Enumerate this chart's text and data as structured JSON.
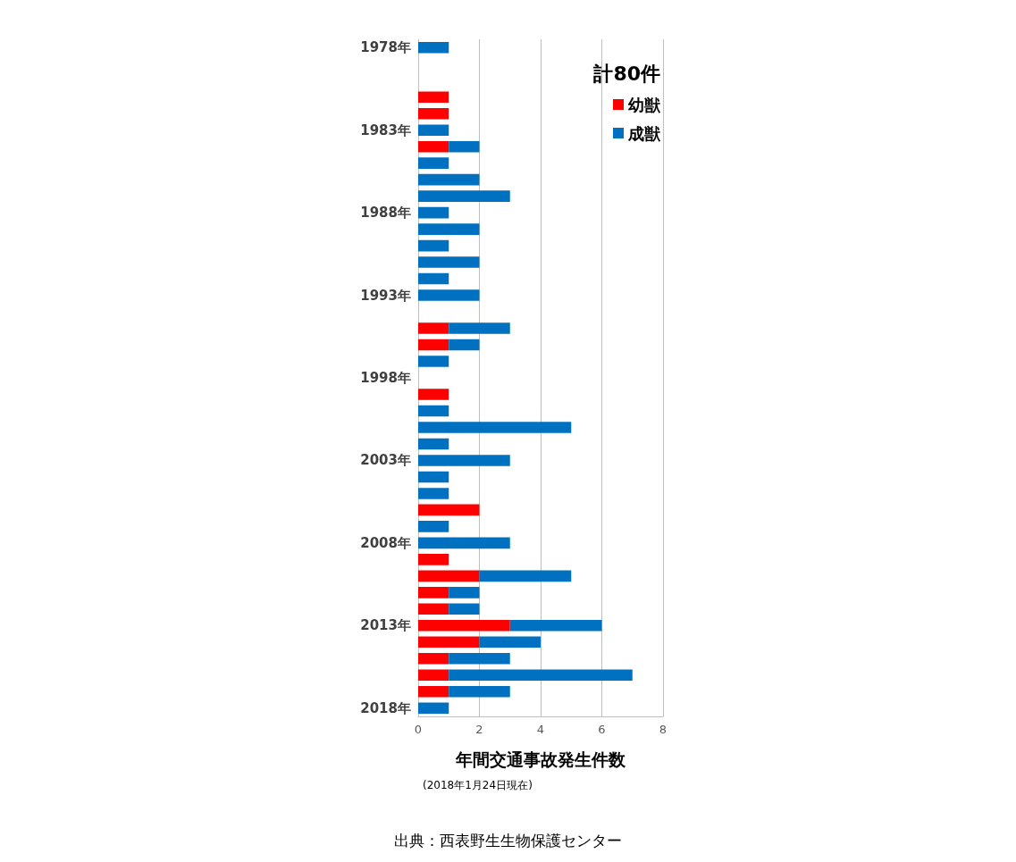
{
  "chart_data": {
    "type": "bar",
    "orientation": "horizontal",
    "stacked": true,
    "categories": [
      "1978年",
      null,
      null,
      null,
      null,
      "1983年",
      null,
      null,
      null,
      null,
      "1988年",
      null,
      null,
      null,
      null,
      "1993年",
      null,
      null,
      null,
      null,
      "1998年",
      null,
      null,
      null,
      null,
      "2003年",
      null,
      null,
      null,
      null,
      "2008年",
      null,
      null,
      null,
      null,
      "2013年",
      null,
      null,
      null,
      null,
      "2018年"
    ],
    "series": [
      {
        "name": "幼獣",
        "color": "#ff0000",
        "values": [
          0,
          0,
          0,
          1,
          1,
          0,
          1,
          0,
          0,
          0,
          0,
          0,
          0,
          0,
          0,
          0,
          0,
          1,
          1,
          0,
          0,
          1,
          0,
          0,
          0,
          0,
          0,
          0,
          2,
          0,
          0,
          1,
          2,
          1,
          1,
          3,
          2,
          1,
          1,
          1,
          0
        ]
      },
      {
        "name": "成獣",
        "color": "#0070c0",
        "values": [
          1,
          0,
          0,
          0,
          0,
          1,
          1,
          1,
          2,
          3,
          1,
          2,
          1,
          2,
          1,
          2,
          0,
          2,
          1,
          1,
          0,
          0,
          1,
          5,
          1,
          3,
          1,
          1,
          0,
          1,
          3,
          0,
          3,
          1,
          1,
          3,
          2,
          2,
          6,
          2,
          1
        ]
      }
    ],
    "xlim": [
      0,
      8
    ],
    "xticks": [
      0,
      2,
      4,
      6,
      8
    ],
    "grid": "x",
    "legend": "top right",
    "legend_title": "計80件",
    "xlabel": "年間交通事故発生件数",
    "annotations": [
      "(2018年1月24日現在)",
      "出典：西表野生生物保護センター"
    ]
  }
}
